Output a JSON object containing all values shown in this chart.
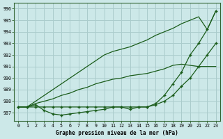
{
  "title": "Graphe pression niveau de la mer (hPa)",
  "background_color": "#cce8e8",
  "grid_color": "#aacccc",
  "line_color": "#1a5c1a",
  "x_labels": [
    "0",
    "1",
    "2",
    "3",
    "4",
    "5",
    "6",
    "7",
    "8",
    "9",
    "10",
    "11",
    "12",
    "13",
    "14",
    "15",
    "16",
    "17",
    "18",
    "19",
    "20",
    "21",
    "22",
    "23"
  ],
  "ylim": [
    986.3,
    996.5
  ],
  "yticks": [
    987,
    988,
    989,
    990,
    991,
    992,
    993,
    994,
    995,
    996
  ],
  "hours": [
    0,
    1,
    2,
    3,
    4,
    5,
    6,
    7,
    8,
    9,
    10,
    11,
    12,
    13,
    14,
    15,
    16,
    17,
    18,
    19,
    20,
    21,
    22,
    23
  ],
  "line_steep": [
    987.5,
    987.5,
    988.0,
    988.5,
    989.0,
    989.5,
    990.0,
    990.5,
    991.0,
    991.5,
    992.0,
    992.3,
    992.5,
    992.7,
    993.0,
    993.3,
    993.7,
    994.0,
    994.3,
    994.7,
    995.0,
    995.3,
    994.2,
    995.8
  ],
  "line_upper": [
    987.5,
    987.5,
    987.8,
    988.0,
    988.2,
    988.5,
    988.7,
    989.0,
    989.2,
    989.5,
    989.7,
    989.9,
    990.0,
    990.2,
    990.3,
    990.4,
    990.6,
    990.8,
    991.1,
    991.2,
    991.1,
    991.0,
    991.0,
    991.0
  ],
  "line_flat_markers": [
    987.5,
    987.5,
    987.5,
    987.5,
    987.5,
    987.5,
    987.5,
    987.5,
    987.5,
    987.5,
    987.5,
    987.5,
    987.5,
    987.5,
    987.5,
    987.5,
    987.7,
    988.0,
    988.5,
    989.3,
    990.0,
    991.0,
    992.0,
    993.0
  ],
  "line_dip_markers": [
    987.5,
    987.5,
    987.7,
    987.2,
    986.9,
    986.8,
    986.9,
    987.0,
    987.1,
    987.2,
    987.3,
    987.5,
    987.5,
    987.3,
    987.5,
    987.5,
    987.8,
    988.5,
    989.5,
    990.5,
    992.0,
    993.0,
    994.2,
    995.8
  ]
}
